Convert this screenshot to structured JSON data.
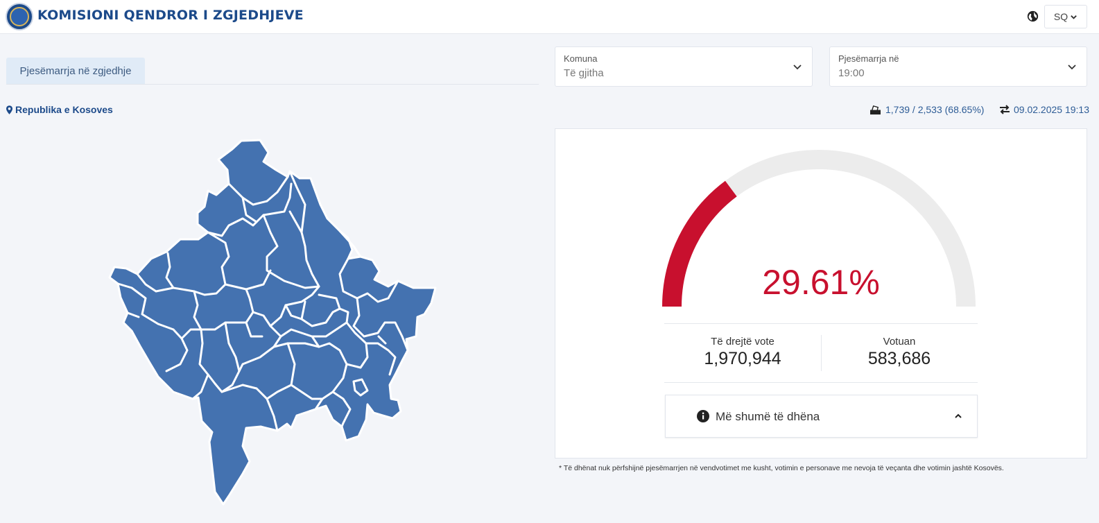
{
  "header": {
    "title": "KOMISIONI QENDROR I ZGJEDHJEVE",
    "language": "SQ"
  },
  "tabs": [
    {
      "label": "Pjesëmarrja në zgjedhje"
    }
  ],
  "filters": {
    "komuna": {
      "label": "Komuna",
      "value": "Të gjitha"
    },
    "time": {
      "label": "Pjesëmarrja në",
      "value": "19:00"
    }
  },
  "location": "Republika e Kosoves",
  "stations": "1,739 / 2,533 (68.65%)",
  "updated": "09.02.2025 19:13",
  "turnout": {
    "percent_label": "29.61%",
    "fraction": 0.2961,
    "eligible_label": "Të drejtë vote",
    "eligible_value": "1,970,944",
    "voted_label": "Votuan",
    "voted_value": "583,686"
  },
  "more_label": "Më shumë të dhëna",
  "footnote": "* Të dhënat nuk përfshijnë pjesëmarrjen në vendvotimet me kusht, votimin e personave me nevoja të veçanta dhe votimin jashtë Kosovës.",
  "colors": {
    "brand": "#1c4a8a",
    "map_fill": "#4472b0",
    "gauge_active": "#c8102e",
    "gauge_track": "#ececec"
  },
  "icons": [
    "logo-icon",
    "globe-icon",
    "chevron-down-icon",
    "map-marker-icon",
    "ballot-box-icon",
    "exchange-icon",
    "info-icon",
    "chevron-up-icon"
  ]
}
